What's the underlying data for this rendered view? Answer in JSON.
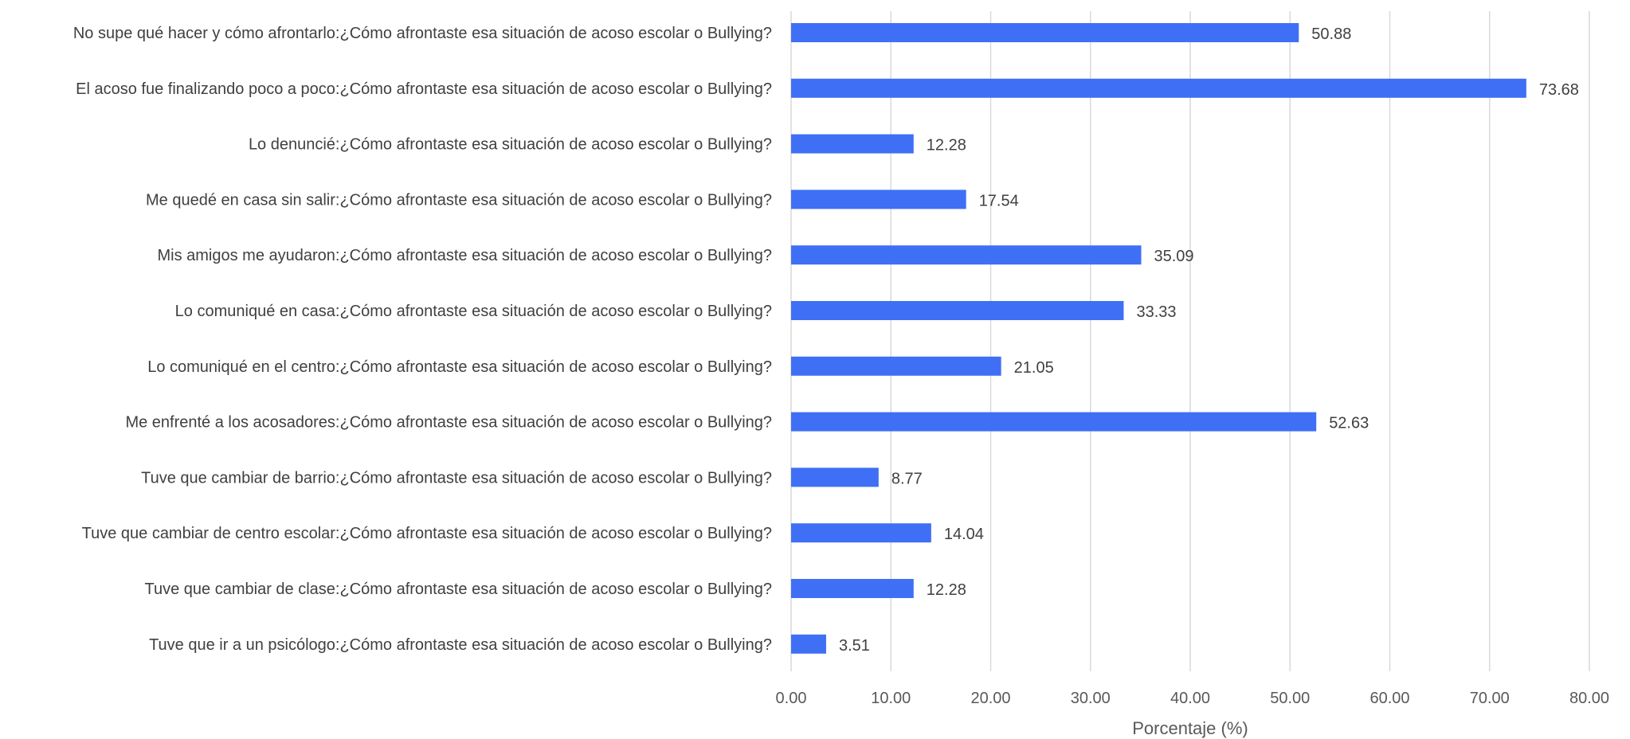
{
  "chart_data": {
    "type": "bar",
    "orientation": "horizontal",
    "title": "",
    "xlabel": "Porcentaje (%)",
    "ylabel": "",
    "xlim": [
      0,
      80
    ],
    "ticks": [
      0,
      10,
      20,
      30,
      40,
      50,
      60,
      70,
      80
    ],
    "tick_labels": [
      "0.00",
      "10.00",
      "20.00",
      "30.00",
      "40.00",
      "50.00",
      "60.00",
      "70.00",
      "80.00"
    ],
    "grid": true,
    "legend": "none",
    "bar_color": "#3f6ff5",
    "categories": [
      "No supe qué hacer y cómo afrontarlo:¿Cómo afrontaste esa situación de acoso escolar o Bullying?",
      "El acoso fue finalizando poco a poco:¿Cómo afrontaste esa situación de acoso escolar o Bullying?",
      "Lo denuncié:¿Cómo afrontaste esa situación de acoso escolar o Bullying?",
      "Me quedé en casa sin salir:¿Cómo afrontaste esa situación de acoso escolar o Bullying?",
      "Mis amigos me ayudaron:¿Cómo afrontaste esa situación de acoso escolar o Bullying?",
      "Lo comuniqué en casa:¿Cómo afrontaste esa situación de acoso escolar o Bullying?",
      "Lo comuniqué en el centro:¿Cómo afrontaste esa situación de acoso escolar o Bullying?",
      "Me enfrenté a los acosadores:¿Cómo afrontaste esa situación de acoso escolar o Bullying?",
      "Tuve que cambiar de barrio:¿Cómo afrontaste esa situación de acoso escolar o Bullying?",
      "Tuve que cambiar de centro escolar:¿Cómo afrontaste esa situación de acoso escolar o Bullying?",
      "Tuve que cambiar de clase:¿Cómo afrontaste esa situación de acoso escolar o Bullying?",
      "Tuve que ir a un psicólogo:¿Cómo afrontaste esa situación de acoso escolar o Bullying?"
    ],
    "values": [
      50.88,
      73.68,
      12.28,
      17.54,
      35.09,
      33.33,
      21.05,
      52.63,
      8.77,
      14.04,
      12.28,
      3.51
    ],
    "value_labels": [
      "50.88",
      "73.68",
      "12.28",
      "17.54",
      "35.09",
      "33.33",
      "21.05",
      "52.63",
      "8.77",
      "14.04",
      "12.28",
      "3.51"
    ]
  }
}
